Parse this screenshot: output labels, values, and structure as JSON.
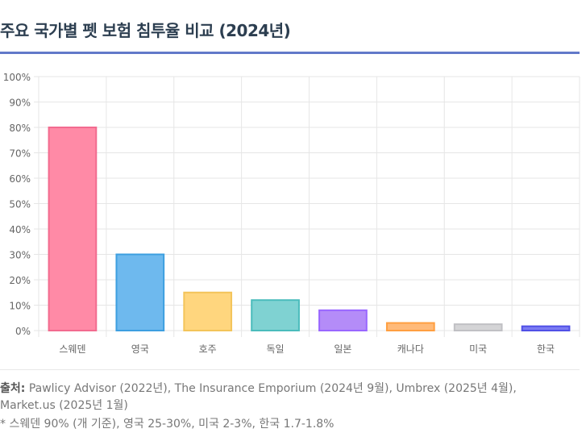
{
  "title": "주요 국가별 펫 보험 침투율 비교 (2024년)",
  "source": {
    "label": "출처:",
    "text": "Pawlicy Advisor (2022년), The Insurance Emporium (2024년 9월), Umbrex (2025년 4월), Market.us (2025년 1월)"
  },
  "footnote": "* 스웨덴 90% (개 기준), 영국 25-30%, 미국 2-3%, 한국 1.7-1.8%",
  "chart_data": {
    "type": "bar",
    "categories": [
      "스웨덴",
      "영국",
      "호주",
      "독일",
      "일본",
      "캐나다",
      "미국",
      "한국"
    ],
    "values": [
      80,
      30,
      15,
      12,
      8,
      3,
      2.5,
      1.7
    ],
    "unit": "%",
    "ylim": [
      0,
      100
    ],
    "yticks": [
      "0%",
      "10%",
      "20%",
      "30%",
      "40%",
      "50%",
      "60%",
      "70%",
      "80%",
      "90%",
      "100%"
    ],
    "grid": true,
    "legend": "none",
    "colors": [
      "#ff8aa6",
      "#6eb9ee",
      "#ffd67e",
      "#7fd2d2",
      "#b48cf8",
      "#ffba79",
      "#d4d4d6",
      "#7b7bf2"
    ],
    "border_colors": [
      "#f26b8f",
      "#3d9fe0",
      "#f3c45a",
      "#4bbcbc",
      "#9966ff",
      "#ff9f40",
      "#c0c0c4",
      "#5050e6"
    ]
  }
}
